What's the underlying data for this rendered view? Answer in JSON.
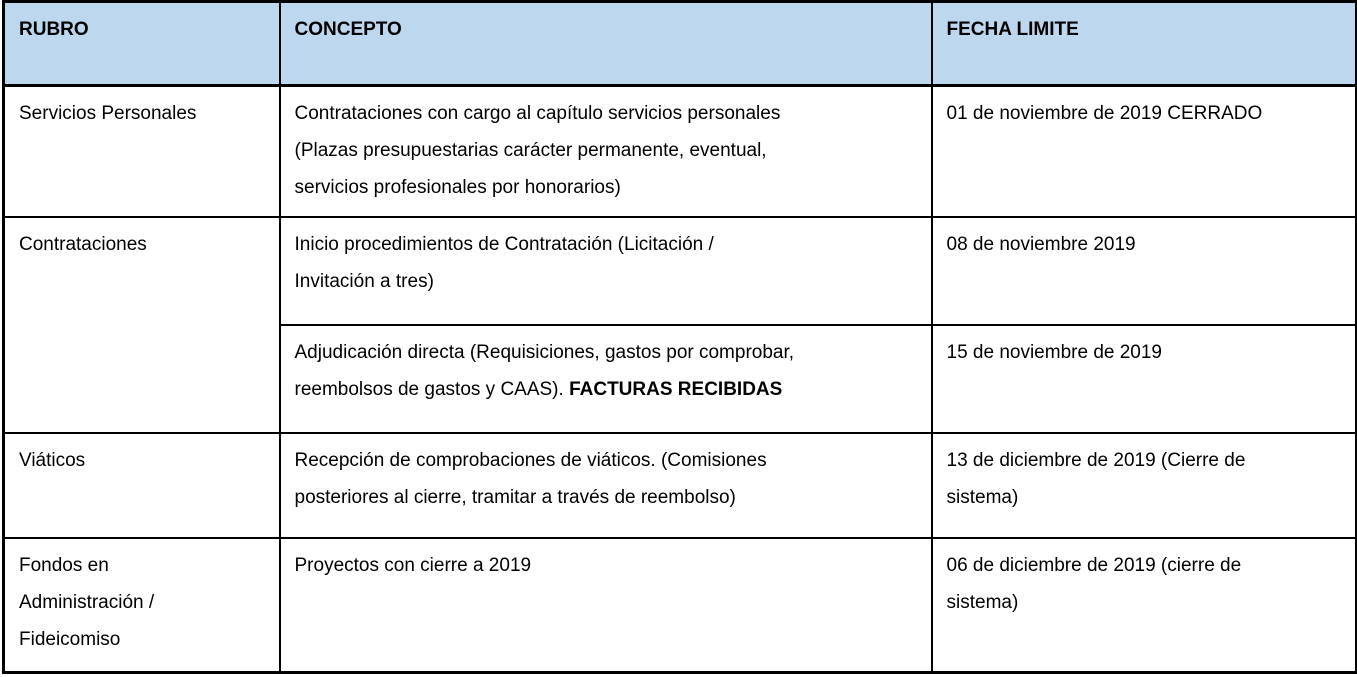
{
  "colors": {
    "header_bg": "#BDD7EE",
    "border": "#000000",
    "text": "#000000"
  },
  "table": {
    "headers": {
      "rubro": "RUBRO",
      "concepto": "CONCEPTO",
      "fecha": "FECHA LIMITE"
    },
    "rows": {
      "servicios": {
        "rubro": "Servicios Personales",
        "concepto": "Contrataciones con cargo al capítulo servicios personales\n(Plazas presupuestarias carácter permanente, eventual,\nservicios profesionales por honorarios)",
        "fecha": "01 de noviembre de 2019 CERRADO"
      },
      "contrataciones": {
        "rubro": "Contrataciones",
        "sub1": {
          "concepto": "Inicio procedimientos de Contratación (Licitación /\nInvitación a tres)",
          "fecha": "08 de noviembre 2019"
        },
        "sub2": {
          "concepto_regular": "Adjudicación directa (Requisiciones, gastos por comprobar,\nreembolsos de gastos y CAAS). ",
          "concepto_bold": "FACTURAS RECIBIDAS",
          "fecha": "15 de noviembre de 2019"
        }
      },
      "viaticos": {
        "rubro": "Viáticos",
        "concepto": "Recepción de comprobaciones de viáticos. (Comisiones\nposteriores al cierre, tramitar a través de reembolso)",
        "fecha": "13 de diciembre de 2019 (Cierre de\nsistema)"
      },
      "fondos": {
        "rubro": "Fondos en\nAdministración /\nFideicomiso",
        "concepto": "Proyectos con cierre a 2019",
        "fecha": "06 de diciembre de 2019 (cierre de\nsistema)"
      }
    }
  }
}
